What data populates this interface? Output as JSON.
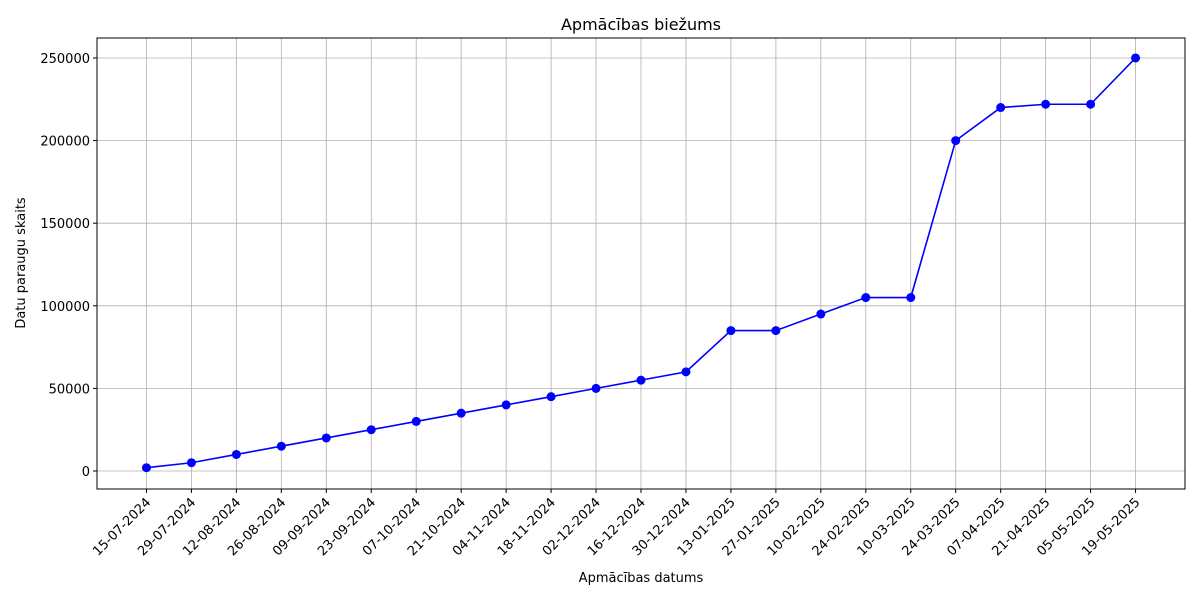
{
  "chart_data": {
    "type": "line",
    "title": "Apmācības biežums",
    "x_label": "Apmācības datums",
    "y_label": "Datu paraugu skaits",
    "categories": [
      "15-07-2024",
      "29-07-2024",
      "12-08-2024",
      "26-08-2024",
      "09-09-2024",
      "23-09-2024",
      "07-10-2024",
      "21-10-2024",
      "04-11-2024",
      "18-11-2024",
      "02-12-2024",
      "16-12-2024",
      "30-12-2024",
      "13-01-2025",
      "27-01-2025",
      "10-02-2025",
      "24-02-2025",
      "10-03-2025",
      "24-03-2025",
      "07-04-2025",
      "21-04-2025",
      "05-05-2025",
      "19-05-2025"
    ],
    "series": [
      {
        "name": "Datu paraugu skaits",
        "color": "#0000ff",
        "values": [
          2000,
          5000,
          10000,
          15000,
          20000,
          25000,
          30000,
          35000,
          40000,
          45000,
          50000,
          55000,
          60000,
          85000,
          85000,
          95000,
          105000,
          105000,
          200000,
          220000,
          222000,
          222000,
          250000
        ]
      }
    ],
    "ylim": [
      -10900,
      262100
    ],
    "yticks": [
      0,
      50000,
      100000,
      150000,
      200000,
      250000
    ],
    "grid": true
  }
}
